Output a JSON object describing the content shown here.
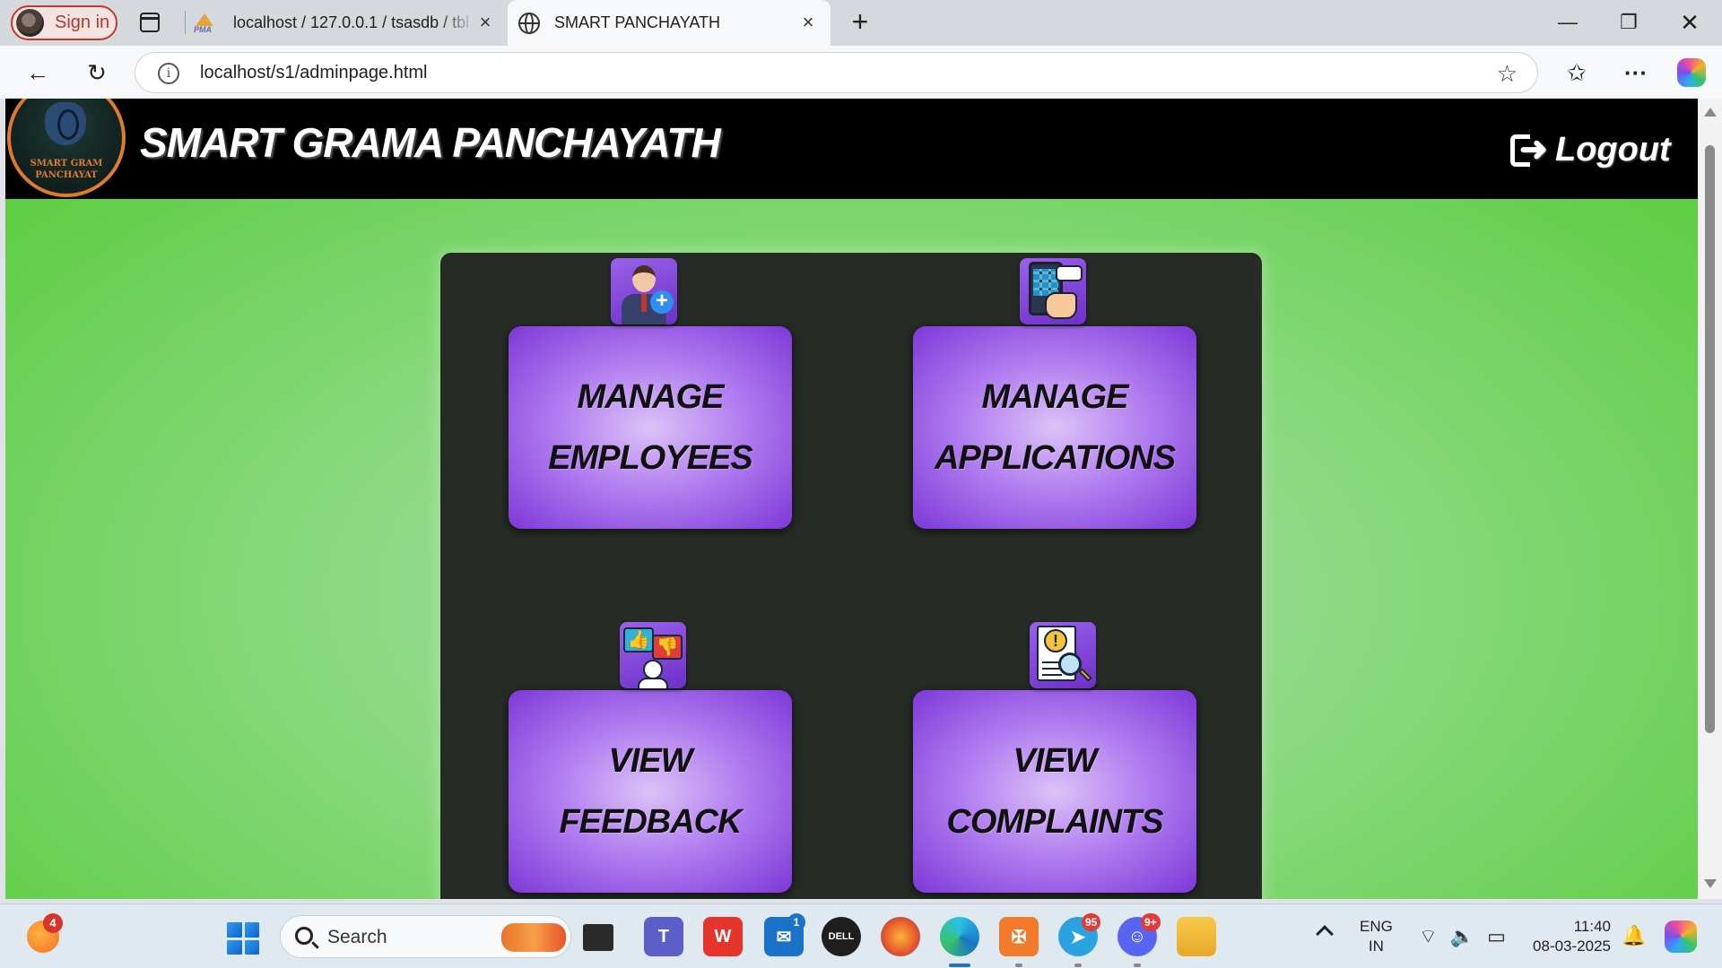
{
  "browser": {
    "profile_label": "Sign in",
    "tabs": [
      {
        "title": "localhost / 127.0.0.1 / tsasdb / tbl",
        "favicon": "phpmyadmin-icon",
        "active": false
      },
      {
        "title": "SMART PANCHAYATH",
        "favicon": "globe-icon",
        "active": true
      }
    ],
    "new_tab_symbol": "+",
    "url": "localhost/s1/adminpage.html"
  },
  "header": {
    "logo_text_line1": "SMART GRAM",
    "logo_text_line2": "PANCHAYAT",
    "title": "SMART GRAMA PANCHAYATH",
    "logout_label": "Logout"
  },
  "cards": [
    {
      "line1": "MANAGE",
      "line2": "EMPLOYEES",
      "icon": "add-employee-icon"
    },
    {
      "line1": "MANAGE",
      "line2": "APPLICATIONS",
      "icon": "mobile-application-icon"
    },
    {
      "line1": "VIEW",
      "line2": "FEEDBACK",
      "icon": "feedback-icon"
    },
    {
      "line1": "VIEW",
      "line2": "COMPLAINTS",
      "icon": "complaint-search-icon"
    }
  ],
  "taskbar": {
    "weather_badge": "4",
    "search_placeholder": "Search",
    "mail_badge": "1",
    "telegram_badge": "95",
    "discord_badge": "9+",
    "lang_line1": "ENG",
    "lang_line2": "IN",
    "time": "11:40",
    "date": "08-03-2025"
  },
  "colors": {
    "header_bg": "#000000",
    "page_green": "#58cc3c",
    "panel_bg": "#262b26",
    "card_purple": "#7d38d8",
    "logo_orange": "#e07a2f"
  }
}
